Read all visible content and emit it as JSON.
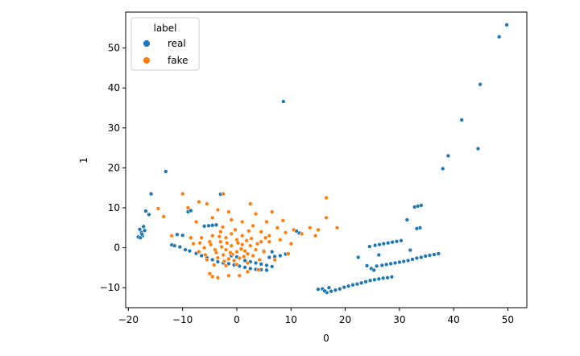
{
  "chart_data": {
    "type": "scatter",
    "title": "",
    "xlabel": "0",
    "ylabel": "1",
    "xlim": [
      -20.5,
      53.5
    ],
    "ylim": [
      -15,
      59
    ],
    "xticks": [
      -20,
      -10,
      0,
      10,
      20,
      30,
      40,
      50
    ],
    "xtick_labels": [
      "−20",
      "−10",
      "0",
      "10",
      "20",
      "30",
      "40",
      "50"
    ],
    "yticks": [
      -10,
      0,
      10,
      20,
      30,
      40,
      50
    ],
    "ytick_labels": [
      "−10",
      "0",
      "10",
      "20",
      "30",
      "40",
      "50"
    ],
    "grid": false,
    "legend": {
      "title": "label",
      "placement": "top-left",
      "entries": [
        {
          "name": "real",
          "color": "#1f77b4"
        },
        {
          "name": "fake",
          "color": "#ff7f0e"
        }
      ]
    },
    "series": [
      {
        "name": "real",
        "color": "#1f77b4",
        "points": [
          [
            49.8,
            55.8
          ],
          [
            48.4,
            52.8
          ],
          [
            44.9,
            40.9
          ],
          [
            44.5,
            24.8
          ],
          [
            41.5,
            32.0
          ],
          [
            39.0,
            23.0
          ],
          [
            38.0,
            19.8
          ],
          [
            8.6,
            36.6
          ],
          [
            -13.1,
            19.1
          ],
          [
            -15.8,
            13.5
          ],
          [
            -3.0,
            13.4
          ],
          [
            -16.8,
            9.2
          ],
          [
            -16.2,
            8.3
          ],
          [
            -17.2,
            5.3
          ],
          [
            -17.0,
            4.3
          ],
          [
            -17.6,
            3.8
          ],
          [
            -17.4,
            3.0
          ],
          [
            -18.2,
            2.7
          ],
          [
            -17.8,
            2.5
          ],
          [
            -17.5,
            3.4
          ],
          [
            -17.9,
            4.6
          ],
          [
            -12.0,
            0.7
          ],
          [
            -11.5,
            0.5
          ],
          [
            -10.5,
            0.2
          ],
          [
            -9.5,
            -0.5
          ],
          [
            -8.7,
            -0.8
          ],
          [
            -11.0,
            3.3
          ],
          [
            -10.0,
            3.1
          ],
          [
            -9.0,
            9.0
          ],
          [
            -8.5,
            9.3
          ],
          [
            -6.0,
            5.4
          ],
          [
            -5.2,
            5.5
          ],
          [
            -4.5,
            5.6
          ],
          [
            -3.8,
            5.7
          ],
          [
            -7.5,
            -1.4
          ],
          [
            -6.5,
            -2.0
          ],
          [
            -5.5,
            -2.5
          ],
          [
            -4.5,
            -3.0
          ],
          [
            -3.5,
            -3.5
          ],
          [
            -2.5,
            -3.8
          ],
          [
            -1.5,
            -4.0
          ],
          [
            -0.5,
            -4.3
          ],
          [
            0.5,
            -4.6
          ],
          [
            1.5,
            -4.9
          ],
          [
            2.5,
            -5.2
          ],
          [
            3.5,
            -5.4
          ],
          [
            4.5,
            -5.5
          ],
          [
            5.5,
            -5.6
          ],
          [
            1.5,
            -3.2
          ],
          [
            2.5,
            -3.5
          ],
          [
            3.5,
            -3.8
          ],
          [
            4.5,
            -4.1
          ],
          [
            5.5,
            -4.4
          ],
          [
            6.5,
            -4.7
          ],
          [
            6.0,
            -2.4
          ],
          [
            7.0,
            -2.2
          ],
          [
            8.0,
            -2.0
          ],
          [
            9.0,
            -1.6
          ],
          [
            5.0,
            -0.8
          ],
          [
            6.5,
            -1.0
          ],
          [
            -1.0,
            -2.0
          ],
          [
            0.0,
            -2.3
          ],
          [
            11.5,
            3.7
          ],
          [
            11.0,
            4.2
          ],
          [
            15.0,
            -10.4
          ],
          [
            15.8,
            -10.3
          ],
          [
            16.6,
            -11.2
          ],
          [
            17.4,
            -10.9
          ],
          [
            18.2,
            -10.6
          ],
          [
            19.0,
            -10.3
          ],
          [
            19.8,
            -9.9
          ],
          [
            20.6,
            -9.6
          ],
          [
            21.4,
            -9.3
          ],
          [
            22.2,
            -9.1
          ],
          [
            23.0,
            -8.8
          ],
          [
            23.8,
            -8.5
          ],
          [
            24.6,
            -8.2
          ],
          [
            25.4,
            -8.0
          ],
          [
            26.2,
            -7.8
          ],
          [
            27.0,
            -7.6
          ],
          [
            27.8,
            -7.5
          ],
          [
            28.6,
            -7.3
          ],
          [
            17.0,
            -10.0
          ],
          [
            16.2,
            -10.8
          ],
          [
            24.5,
            0.3
          ],
          [
            25.5,
            0.6
          ],
          [
            26.3,
            0.8
          ],
          [
            27.1,
            1.0
          ],
          [
            27.9,
            1.2
          ],
          [
            28.7,
            1.4
          ],
          [
            29.5,
            1.6
          ],
          [
            30.3,
            1.8
          ],
          [
            22.4,
            -2.4
          ],
          [
            24.0,
            -4.5
          ],
          [
            24.8,
            -5.2
          ],
          [
            25.3,
            -5.6
          ],
          [
            25.8,
            -4.6
          ],
          [
            26.8,
            -4.4
          ],
          [
            27.6,
            -4.2
          ],
          [
            28.4,
            -4.0
          ],
          [
            29.2,
            -3.8
          ],
          [
            30.0,
            -3.6
          ],
          [
            30.8,
            -3.4
          ],
          [
            31.6,
            -3.2
          ],
          [
            32.4,
            -2.9
          ],
          [
            33.2,
            -2.6
          ],
          [
            34.0,
            -2.4
          ],
          [
            34.8,
            -2.1
          ],
          [
            35.6,
            -1.9
          ],
          [
            36.4,
            -1.7
          ],
          [
            37.2,
            -1.5
          ],
          [
            31.4,
            7.0
          ],
          [
            32.8,
            10.2
          ],
          [
            33.4,
            10.4
          ],
          [
            34.0,
            10.6
          ],
          [
            33.8,
            5.0
          ],
          [
            33.2,
            4.8
          ],
          [
            32.0,
            -0.6
          ],
          [
            26.2,
            -1.8
          ]
        ]
      },
      {
        "name": "fake",
        "color": "#ff7f0e",
        "points": [
          [
            -2.5,
            13.5
          ],
          [
            -10.0,
            13.5
          ],
          [
            -13.5,
            7.8
          ],
          [
            -14.5,
            9.8
          ],
          [
            -9.0,
            10.0
          ],
          [
            -7.0,
            11.5
          ],
          [
            -5.5,
            11.0
          ],
          [
            -3.5,
            9.5
          ],
          [
            2.5,
            11.0
          ],
          [
            -1.5,
            9.0
          ],
          [
            16.5,
            12.5
          ],
          [
            16.5,
            7.5
          ],
          [
            8.5,
            6.8
          ],
          [
            6.5,
            9.0
          ],
          [
            3.5,
            8.5
          ],
          [
            18.5,
            5.0
          ],
          [
            15.0,
            4.5
          ],
          [
            13.5,
            5.0
          ],
          [
            12.0,
            3.5
          ],
          [
            10.5,
            4.5
          ],
          [
            14.5,
            3.0
          ],
          [
            9.0,
            3.8
          ],
          [
            7.5,
            5.0
          ],
          [
            5.5,
            6.5
          ],
          [
            -12.0,
            3.0
          ],
          [
            -8.5,
            2.5
          ],
          [
            -7.5,
            6.5
          ],
          [
            -4.5,
            7.5
          ],
          [
            -1.0,
            7.0
          ],
          [
            1.0,
            6.5
          ],
          [
            3.0,
            5.5
          ],
          [
            4.5,
            4.0
          ],
          [
            6.0,
            3.0
          ],
          [
            8.0,
            2.0
          ],
          [
            10.0,
            1.0
          ],
          [
            2.0,
            -6.0
          ],
          [
            -1.5,
            -7.0
          ],
          [
            -3.5,
            -7.5
          ],
          [
            -5.0,
            -6.5
          ],
          [
            -4.5,
            -7.2
          ],
          [
            0.5,
            -7.0
          ],
          [
            4.0,
            -5.5
          ],
          [
            7.0,
            -3.0
          ],
          [
            9.5,
            -1.5
          ],
          [
            -3.0,
            1.5
          ],
          [
            -2.0,
            -0.5
          ],
          [
            -1.0,
            0.5
          ],
          [
            0.0,
            -1.0
          ],
          [
            1.0,
            0.8
          ],
          [
            2.0,
            -1.5
          ],
          [
            -4.0,
            -0.5
          ],
          [
            -5.0,
            1.5
          ],
          [
            -6.0,
            0.0
          ],
          [
            -3.5,
            -2.5
          ],
          [
            -2.5,
            -1.8
          ],
          [
            -1.5,
            -2.8
          ],
          [
            -0.5,
            -3.2
          ],
          [
            0.5,
            -2.6
          ],
          [
            1.5,
            -0.8
          ],
          [
            2.5,
            0.5
          ],
          [
            3.5,
            -0.5
          ],
          [
            4.5,
            1.5
          ],
          [
            -2.0,
            2.5
          ],
          [
            -1.0,
            3.5
          ],
          [
            0.0,
            2.0
          ],
          [
            1.0,
            3.0
          ],
          [
            -3.0,
            4.0
          ],
          [
            -4.5,
            3.0
          ],
          [
            -6.5,
            2.5
          ],
          [
            -7.0,
            -1.0
          ],
          [
            -5.5,
            -3.0
          ],
          [
            -2.0,
            -4.5
          ],
          [
            0.0,
            -4.2
          ],
          [
            2.0,
            -3.8
          ],
          [
            3.0,
            -2.0
          ],
          [
            5.0,
            -1.0
          ],
          [
            6.0,
            1.5
          ],
          [
            -8.0,
            1.0
          ],
          [
            -2.8,
            0.2
          ],
          [
            -1.8,
            1.2
          ],
          [
            -0.8,
            -1.6
          ],
          [
            0.8,
            -0.3
          ],
          [
            1.8,
            1.8
          ],
          [
            -3.8,
            -1.2
          ],
          [
            -4.8,
            0.8
          ],
          [
            -2.3,
            -3.4
          ],
          [
            -1.2,
            -1.2
          ],
          [
            0.2,
            1.2
          ],
          [
            1.3,
            -2.2
          ],
          [
            2.7,
            2.3
          ],
          [
            3.8,
            1.0
          ],
          [
            -5.8,
            -1.8
          ],
          [
            -6.8,
            1.2
          ],
          [
            -0.3,
            4.5
          ],
          [
            -2.6,
            5.2
          ],
          [
            4.2,
            -3.0
          ],
          [
            5.3,
            2.5
          ],
          [
            -4.2,
            -4.3
          ],
          [
            -3.2,
            2.8
          ],
          [
            2.2,
            4.2
          ]
        ]
      }
    ]
  }
}
